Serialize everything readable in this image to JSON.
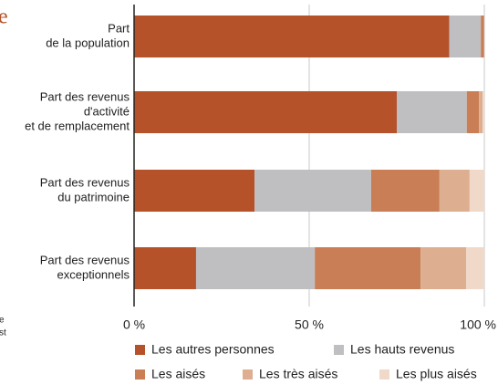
{
  "chart_data": {
    "type": "stacked-bar-horizontal",
    "title": "e",
    "annotations": [
      "e",
      "st"
    ],
    "categories": [
      [
        "Part",
        "de la population"
      ],
      [
        "Part des revenus",
        "d'activité",
        "et de remplacement"
      ],
      [
        "Part des revenus",
        "du patrimoine"
      ],
      [
        "Part des revenus",
        "exceptionnels"
      ]
    ],
    "series": [
      {
        "name": "Les autres personnes",
        "color": "#b5522a",
        "values": [
          90,
          75,
          34.4,
          17.7
        ]
      },
      {
        "name": "Les hauts revenus",
        "color": "#bfbfc1",
        "values": [
          9,
          20,
          33.3,
          33.9
        ]
      },
      {
        "name": "Les aisés",
        "color": "#c97e55",
        "values": [
          0.9,
          3.5,
          19.5,
          30.2
        ]
      },
      {
        "name": "Les très aisés",
        "color": "#deae91",
        "values": [
          0.09,
          1,
          8.6,
          13
        ]
      },
      {
        "name": "Les plus aisés",
        "color": "#f0d9c9",
        "values": [
          0.01,
          0.5,
          4.2,
          5.2
        ]
      }
    ],
    "xlim": [
      0,
      100
    ],
    "xticks": [
      {
        "value": 0,
        "label": "0 %"
      },
      {
        "value": 50,
        "label": "50 %"
      },
      {
        "value": 100,
        "label": "100 %"
      }
    ],
    "grid": true
  }
}
